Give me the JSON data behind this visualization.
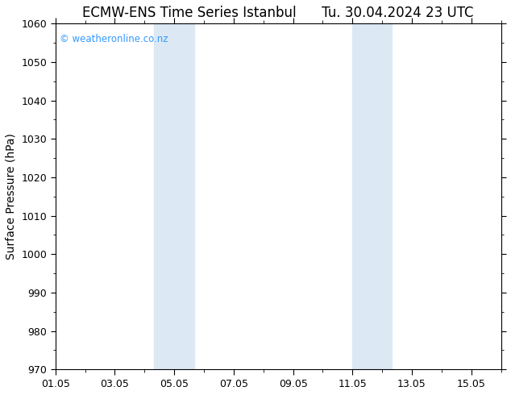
{
  "title": "ECMW-ENS Time Series Istanbul      Tu. 30.04.2024 23 UTC",
  "ylabel": "Surface Pressure (hPa)",
  "ylim": [
    970,
    1060
  ],
  "yticks": [
    970,
    980,
    990,
    1000,
    1010,
    1020,
    1030,
    1040,
    1050,
    1060
  ],
  "xlim": [
    0,
    15
  ],
  "xtick_positions": [
    0,
    2,
    4,
    6,
    8,
    10,
    12,
    14
  ],
  "xtick_labels": [
    "01.05",
    "03.05",
    "05.05",
    "07.05",
    "09.05",
    "11.05",
    "13.05",
    "15.05"
  ],
  "shade_bands": [
    {
      "x_start": 3.33,
      "x_end": 4.0
    },
    {
      "x_start": 4.0,
      "x_end": 4.67
    },
    {
      "x_start": 10.0,
      "x_end": 10.67
    },
    {
      "x_start": 10.67,
      "x_end": 11.33
    }
  ],
  "shade_colors": [
    "#d6eaf8",
    "#ddeeff",
    "#d6eaf8",
    "#ddeeff"
  ],
  "shade_color": "#dce9f5",
  "watermark": "© weatheronline.co.nz",
  "watermark_color": "#3399ff",
  "background_color": "#ffffff",
  "plot_bg_color": "#ffffff",
  "spine_color": "#000000",
  "title_fontsize": 12,
  "tick_fontsize": 9,
  "ylabel_fontsize": 10
}
